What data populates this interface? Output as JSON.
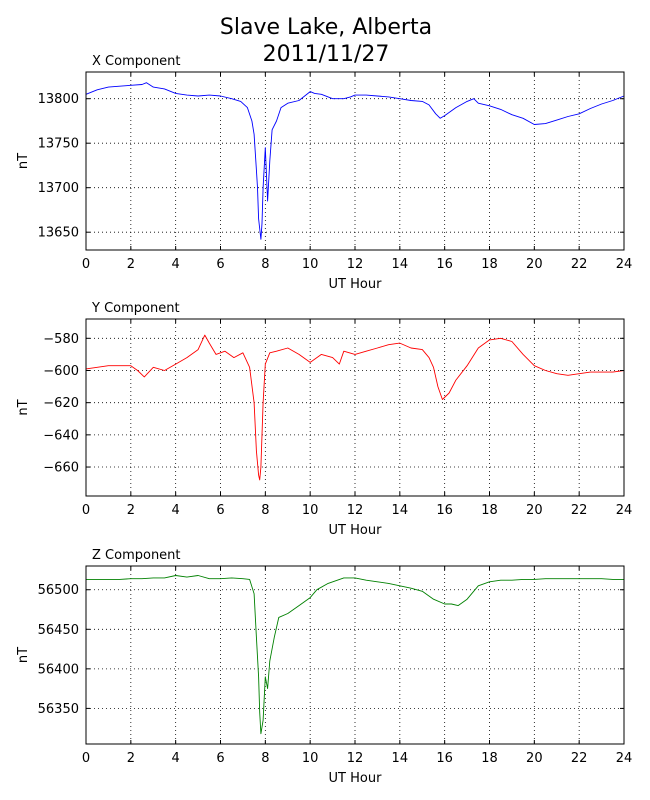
{
  "figure": {
    "title_line1": "Slave Lake, Alberta",
    "title_line2": "2011/11/27"
  },
  "chart_data": [
    {
      "type": "line",
      "title": "X Component",
      "xlabel": "UT Hour",
      "ylabel": "nT",
      "xlim": [
        0,
        24
      ],
      "ylim": [
        13630,
        13830
      ],
      "xticks": [
        0,
        2,
        4,
        6,
        8,
        10,
        12,
        14,
        16,
        18,
        20,
        22,
        24
      ],
      "yticks": [
        13650,
        13700,
        13750,
        13800
      ],
      "grid": true,
      "color": "#0000ff",
      "x": [
        0,
        0.5,
        1,
        1.5,
        2,
        2.5,
        2.7,
        3,
        3.5,
        4,
        4.5,
        5,
        5.5,
        6,
        6.5,
        6.9,
        7.2,
        7.4,
        7.5,
        7.6,
        7.65,
        7.7,
        7.8,
        7.85,
        7.9,
        8.0,
        8.1,
        8.2,
        8.3,
        8.5,
        8.7,
        9.0,
        9.5,
        10,
        10.2,
        10.5,
        11,
        11.5,
        11.8,
        12,
        12.5,
        13,
        13.5,
        14,
        14.5,
        15,
        15.3,
        15.6,
        15.8,
        16,
        16.5,
        17,
        17.3,
        17.5,
        18,
        18.5,
        19,
        19.5,
        20,
        20.5,
        21,
        21.5,
        22,
        22.5,
        23,
        23.5,
        24
      ],
      "y": [
        13805,
        13810,
        13813,
        13814,
        13815,
        13816,
        13818,
        13813,
        13811,
        13806,
        13804,
        13803,
        13804,
        13803,
        13800,
        13797,
        13790,
        13775,
        13760,
        13720,
        13700,
        13665,
        13642,
        13660,
        13700,
        13745,
        13685,
        13730,
        13765,
        13775,
        13790,
        13795,
        13798,
        13808,
        13806,
        13805,
        13800,
        13800,
        13802,
        13804,
        13804,
        13803,
        13802,
        13800,
        13798,
        13797,
        13793,
        13783,
        13778,
        13781,
        13790,
        13797,
        13800,
        13795,
        13792,
        13788,
        13782,
        13778,
        13771,
        13772,
        13776,
        13780,
        13783,
        13789,
        13794,
        13798,
        13803
      ]
    },
    {
      "type": "line",
      "title": "Y Component",
      "xlabel": "UT Hour",
      "ylabel": "nT",
      "xlim": [
        0,
        24
      ],
      "ylim": [
        -678,
        -568
      ],
      "xticks": [
        0,
        2,
        4,
        6,
        8,
        10,
        12,
        14,
        16,
        18,
        20,
        22,
        24
      ],
      "yticks": [
        -660,
        -640,
        -620,
        -600,
        -580
      ],
      "grid": true,
      "color": "#ff0000",
      "x": [
        0,
        0.5,
        1,
        1.5,
        2,
        2.3,
        2.6,
        3,
        3.5,
        4,
        4.5,
        5,
        5.3,
        5.5,
        5.8,
        6.2,
        6.6,
        7.0,
        7.3,
        7.5,
        7.6,
        7.7,
        7.75,
        7.8,
        7.9,
        8.0,
        8.2,
        8.5,
        9,
        9.5,
        10,
        10.5,
        11,
        11.3,
        11.5,
        12,
        12.5,
        13,
        13.5,
        14,
        14.5,
        15,
        15.3,
        15.5,
        15.7,
        15.9,
        16.2,
        16.5,
        17,
        17.5,
        18,
        18.5,
        19,
        19.5,
        20,
        20.5,
        21,
        21.5,
        22,
        22.5,
        23,
        23.5,
        24
      ],
      "y": [
        -599,
        -598,
        -597,
        -597,
        -597,
        -600,
        -604,
        -598,
        -600,
        -596,
        -592,
        -587,
        -578,
        -583,
        -590,
        -588,
        -592,
        -589,
        -598,
        -620,
        -650,
        -665,
        -668,
        -660,
        -620,
        -596,
        -589,
        -588,
        -586,
        -590,
        -595,
        -590,
        -592,
        -596,
        -588,
        -590,
        -588,
        -586,
        -584,
        -583,
        -586,
        -587,
        -592,
        -598,
        -610,
        -618,
        -614,
        -606,
        -597,
        -586,
        -581,
        -580,
        -582,
        -590,
        -597,
        -600,
        -602,
        -603,
        -602,
        -601,
        -601,
        -601,
        -600
      ]
    },
    {
      "type": "line",
      "title": "Z Component",
      "xlabel": "UT Hour",
      "ylabel": "nT",
      "xlim": [
        0,
        24
      ],
      "ylim": [
        56305,
        56530
      ],
      "xticks": [
        0,
        2,
        4,
        6,
        8,
        10,
        12,
        14,
        16,
        18,
        20,
        22,
        24
      ],
      "yticks": [
        56350,
        56400,
        56450,
        56500
      ],
      "grid": true,
      "color": "#008000",
      "x": [
        0,
        0.5,
        1,
        1.5,
        2,
        2.5,
        3,
        3.5,
        4,
        4.5,
        5,
        5.5,
        6,
        6.5,
        7,
        7.3,
        7.5,
        7.6,
        7.7,
        7.75,
        7.8,
        7.9,
        8.0,
        8.1,
        8.2,
        8.4,
        8.6,
        9,
        9.5,
        10,
        10.3,
        10.8,
        11.5,
        12,
        12.5,
        13,
        13.5,
        14,
        14.5,
        15,
        15.5,
        16,
        16.3,
        16.6,
        17,
        17.5,
        18,
        18.5,
        19,
        19.5,
        20,
        20.5,
        21,
        21.5,
        22,
        22.5,
        23,
        23.5,
        24
      ],
      "y": [
        56513,
        56513,
        56513,
        56513,
        56514,
        56514,
        56515,
        56515,
        56518,
        56516,
        56518,
        56514,
        56514,
        56515,
        56514,
        56513,
        56495,
        56440,
        56390,
        56345,
        56318,
        56335,
        56390,
        56375,
        56410,
        56440,
        56465,
        56470,
        56480,
        56490,
        56500,
        56508,
        56515,
        56515,
        56512,
        56510,
        56508,
        56505,
        56502,
        56498,
        56488,
        56482,
        56482,
        56480,
        56488,
        56505,
        56510,
        56512,
        56512,
        56513,
        56513,
        56514,
        56514,
        56514,
        56514,
        56514,
        56514,
        56513,
        56513
      ]
    }
  ]
}
